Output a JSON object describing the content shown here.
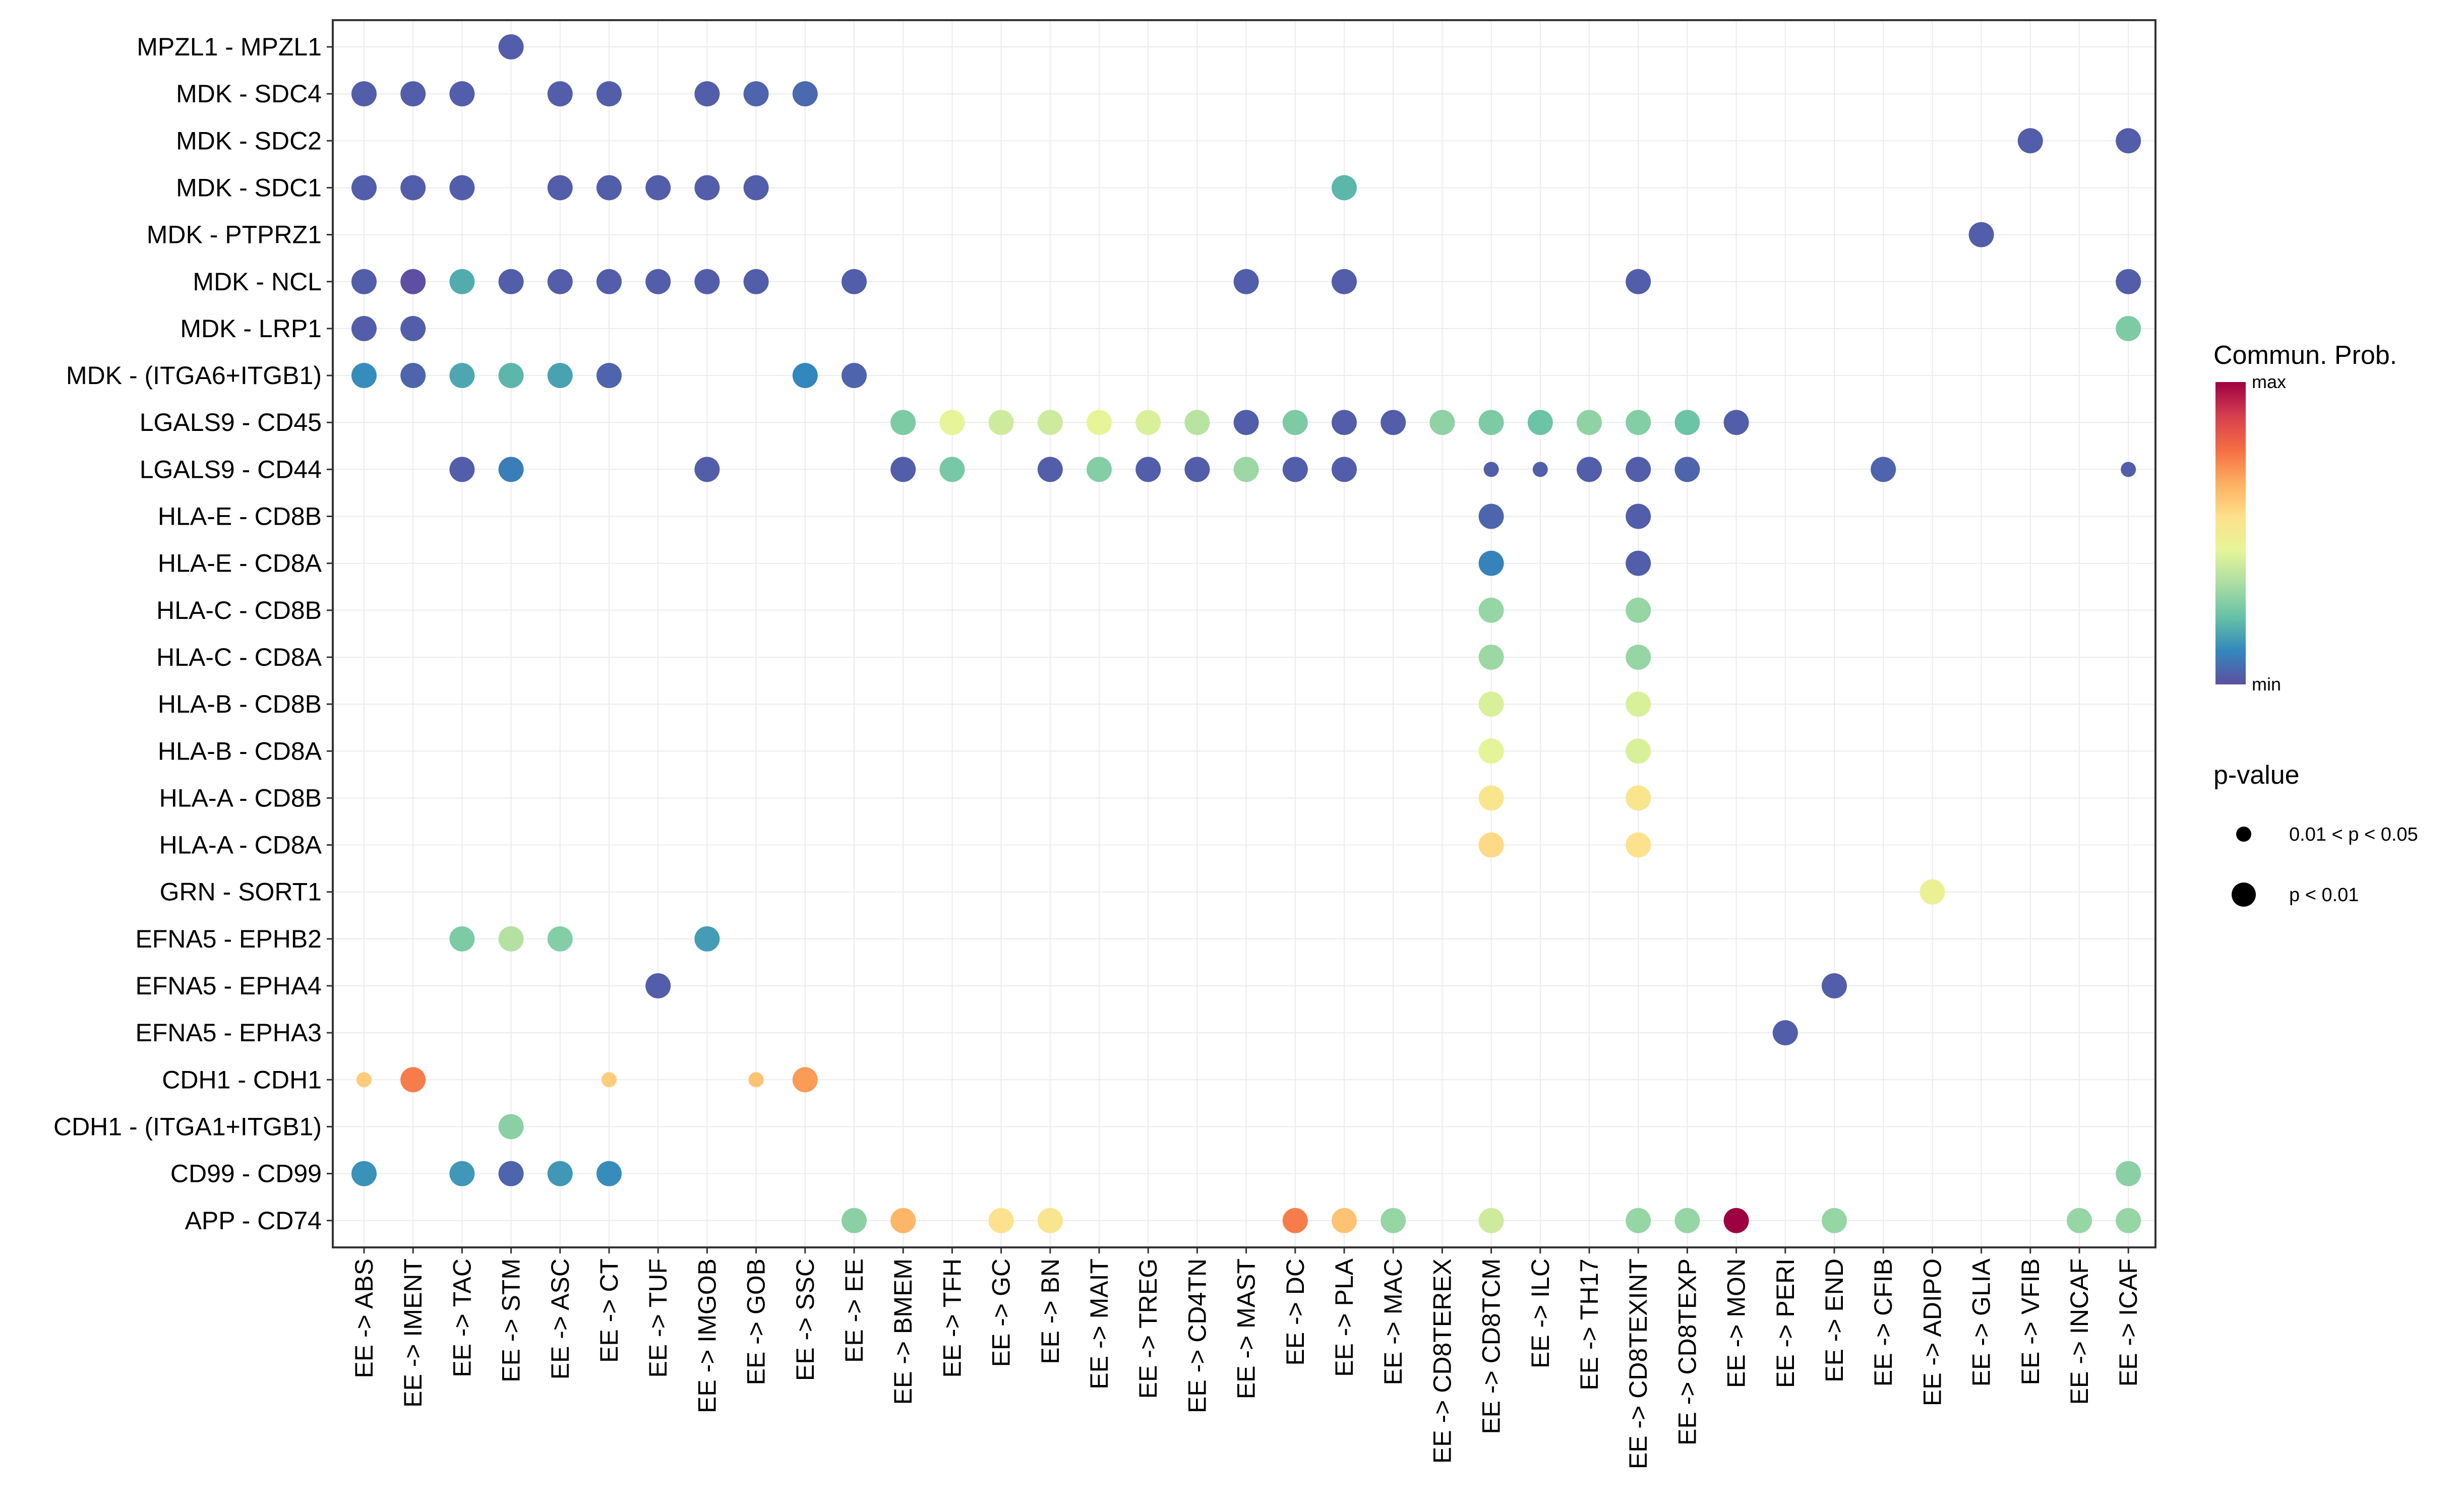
{
  "chart_data": {
    "type": "scatter",
    "title": "",
    "xlabel": "",
    "ylabel": "",
    "x_categories": [
      "EE -> ABS",
      "EE -> IMENT",
      "EE -> TAC",
      "EE -> STM",
      "EE -> ASC",
      "EE -> CT",
      "EE -> TUF",
      "EE -> IMGOB",
      "EE -> GOB",
      "EE -> SSC",
      "EE -> EE",
      "EE -> BMEM",
      "EE -> TFH",
      "EE -> GC",
      "EE -> BN",
      "EE -> MAIT",
      "EE -> TREG",
      "EE -> CD4TN",
      "EE -> MAST",
      "EE -> DC",
      "EE -> PLA",
      "EE -> MAC",
      "EE -> CD8TEREX",
      "EE -> CD8TCM",
      "EE -> ILC",
      "EE -> TH17",
      "EE -> CD8TEXINT",
      "EE -> CD8TEXP",
      "EE -> MON",
      "EE -> PERI",
      "EE -> END",
      "EE -> CFIB",
      "EE -> ADIPO",
      "EE -> GLIA",
      "EE -> VFIB",
      "EE -> INCAF",
      "EE -> ICAF"
    ],
    "y_categories": [
      "MPZL1 - MPZL1",
      "MDK - SDC4",
      "MDK - SDC2",
      "MDK - SDC1",
      "MDK - PTPRZ1",
      "MDK - NCL",
      "MDK - LRP1",
      "MDK - (ITGA6+ITGB1)",
      "LGALS9 - CD45",
      "LGALS9 - CD44",
      "HLA-E - CD8B",
      "HLA-E - CD8A",
      "HLA-C - CD8B",
      "HLA-C - CD8A",
      "HLA-B - CD8B",
      "HLA-B - CD8A",
      "HLA-A - CD8B",
      "HLA-A - CD8A",
      "GRN - SORT1",
      "EFNA5 - EPHB2",
      "EFNA5 - EPHA4",
      "EFNA5 - EPHA3",
      "CDH1 - CDH1",
      "CDH1 - (ITGA1+ITGB1)",
      "CD99 - CD99",
      "APP - CD74"
    ],
    "color_scale": {
      "title": "Commun. Prob.",
      "max_label": "max",
      "min_label": "min",
      "colors": [
        "#5E4FA2",
        "#3288BD",
        "#66C2A5",
        "#ABDDA4",
        "#E6F598",
        "#FEE08B",
        "#FDAE61",
        "#F46D43",
        "#D53E4F",
        "#9E0142"
      ]
    },
    "size_legend": {
      "title": "p-value",
      "levels": [
        {
          "label": "0.01 < p < 0.05",
          "size": "small"
        },
        {
          "label": "p < 0.01",
          "size": "large"
        }
      ]
    },
    "points": [
      {
        "x": 3,
        "y": 0,
        "prob": 0.03,
        "p": "<0.01"
      },
      {
        "x": 0,
        "y": 1,
        "prob": 0.03,
        "p": "<0.01"
      },
      {
        "x": 1,
        "y": 1,
        "prob": 0.03,
        "p": "<0.01"
      },
      {
        "x": 2,
        "y": 1,
        "prob": 0.03,
        "p": "<0.01"
      },
      {
        "x": 4,
        "y": 1,
        "prob": 0.03,
        "p": "<0.01"
      },
      {
        "x": 5,
        "y": 1,
        "prob": 0.03,
        "p": "<0.01"
      },
      {
        "x": 7,
        "y": 1,
        "prob": 0.03,
        "p": "<0.01"
      },
      {
        "x": 8,
        "y": 1,
        "prob": 0.04,
        "p": "<0.01"
      },
      {
        "x": 9,
        "y": 1,
        "prob": 0.05,
        "p": "<0.01"
      },
      {
        "x": 34,
        "y": 2,
        "prob": 0.03,
        "p": "<0.01"
      },
      {
        "x": 36,
        "y": 2,
        "prob": 0.03,
        "p": "<0.01"
      },
      {
        "x": 0,
        "y": 3,
        "prob": 0.03,
        "p": "<0.01"
      },
      {
        "x": 1,
        "y": 3,
        "prob": 0.03,
        "p": "<0.01"
      },
      {
        "x": 2,
        "y": 3,
        "prob": 0.03,
        "p": "<0.01"
      },
      {
        "x": 4,
        "y": 3,
        "prob": 0.03,
        "p": "<0.01"
      },
      {
        "x": 5,
        "y": 3,
        "prob": 0.03,
        "p": "<0.01"
      },
      {
        "x": 6,
        "y": 3,
        "prob": 0.03,
        "p": "<0.01"
      },
      {
        "x": 7,
        "y": 3,
        "prob": 0.03,
        "p": "<0.01"
      },
      {
        "x": 8,
        "y": 3,
        "prob": 0.03,
        "p": "<0.01"
      },
      {
        "x": 20,
        "y": 3,
        "prob": 0.2,
        "p": "<0.01"
      },
      {
        "x": 33,
        "y": 4,
        "prob": 0.03,
        "p": "<0.01"
      },
      {
        "x": 0,
        "y": 5,
        "prob": 0.03,
        "p": "<0.01"
      },
      {
        "x": 1,
        "y": 5,
        "prob": 0.0,
        "p": "<0.01"
      },
      {
        "x": 2,
        "y": 5,
        "prob": 0.18,
        "p": "<0.01"
      },
      {
        "x": 3,
        "y": 5,
        "prob": 0.03,
        "p": "<0.01"
      },
      {
        "x": 4,
        "y": 5,
        "prob": 0.03,
        "p": "<0.01"
      },
      {
        "x": 5,
        "y": 5,
        "prob": 0.03,
        "p": "<0.01"
      },
      {
        "x": 6,
        "y": 5,
        "prob": 0.03,
        "p": "<0.01"
      },
      {
        "x": 7,
        "y": 5,
        "prob": 0.03,
        "p": "<0.01"
      },
      {
        "x": 8,
        "y": 5,
        "prob": 0.03,
        "p": "<0.01"
      },
      {
        "x": 10,
        "y": 5,
        "prob": 0.03,
        "p": "<0.01"
      },
      {
        "x": 18,
        "y": 5,
        "prob": 0.03,
        "p": "<0.01"
      },
      {
        "x": 20,
        "y": 5,
        "prob": 0.03,
        "p": "<0.01"
      },
      {
        "x": 26,
        "y": 5,
        "prob": 0.03,
        "p": "<0.01"
      },
      {
        "x": 36,
        "y": 5,
        "prob": 0.03,
        "p": "<0.01"
      },
      {
        "x": 0,
        "y": 6,
        "prob": 0.03,
        "p": "<0.01"
      },
      {
        "x": 1,
        "y": 6,
        "prob": 0.03,
        "p": "<0.01"
      },
      {
        "x": 36,
        "y": 6,
        "prob": 0.26,
        "p": "<0.01"
      },
      {
        "x": 0,
        "y": 7,
        "prob": 0.12,
        "p": "<0.01"
      },
      {
        "x": 1,
        "y": 7,
        "prob": 0.04,
        "p": "<0.01"
      },
      {
        "x": 2,
        "y": 7,
        "prob": 0.17,
        "p": "<0.01"
      },
      {
        "x": 3,
        "y": 7,
        "prob": 0.2,
        "p": "<0.01"
      },
      {
        "x": 4,
        "y": 7,
        "prob": 0.16,
        "p": "<0.01"
      },
      {
        "x": 5,
        "y": 7,
        "prob": 0.04,
        "p": "<0.01"
      },
      {
        "x": 9,
        "y": 7,
        "prob": 0.11,
        "p": "<0.01"
      },
      {
        "x": 10,
        "y": 7,
        "prob": 0.04,
        "p": "<0.01"
      },
      {
        "x": 11,
        "y": 8,
        "prob": 0.26,
        "p": "<0.01"
      },
      {
        "x": 12,
        "y": 8,
        "prob": 0.45,
        "p": "<0.01"
      },
      {
        "x": 13,
        "y": 8,
        "prob": 0.4,
        "p": "<0.01"
      },
      {
        "x": 14,
        "y": 8,
        "prob": 0.4,
        "p": "<0.01"
      },
      {
        "x": 15,
        "y": 8,
        "prob": 0.45,
        "p": "<0.01"
      },
      {
        "x": 16,
        "y": 8,
        "prob": 0.42,
        "p": "<0.01"
      },
      {
        "x": 17,
        "y": 8,
        "prob": 0.36,
        "p": "<0.01"
      },
      {
        "x": 18,
        "y": 8,
        "prob": 0.03,
        "p": "<0.01"
      },
      {
        "x": 19,
        "y": 8,
        "prob": 0.26,
        "p": "<0.01"
      },
      {
        "x": 20,
        "y": 8,
        "prob": 0.03,
        "p": "<0.01"
      },
      {
        "x": 21,
        "y": 8,
        "prob": 0.03,
        "p": "<0.01"
      },
      {
        "x": 22,
        "y": 8,
        "prob": 0.29,
        "p": "<0.01"
      },
      {
        "x": 23,
        "y": 8,
        "prob": 0.26,
        "p": "<0.01"
      },
      {
        "x": 24,
        "y": 8,
        "prob": 0.23,
        "p": "<0.01"
      },
      {
        "x": 25,
        "y": 8,
        "prob": 0.29,
        "p": "<0.01"
      },
      {
        "x": 26,
        "y": 8,
        "prob": 0.27,
        "p": "<0.01"
      },
      {
        "x": 27,
        "y": 8,
        "prob": 0.23,
        "p": "<0.01"
      },
      {
        "x": 28,
        "y": 8,
        "prob": 0.03,
        "p": "<0.01"
      },
      {
        "x": 2,
        "y": 9,
        "prob": 0.03,
        "p": "<0.01"
      },
      {
        "x": 3,
        "y": 9,
        "prob": 0.09,
        "p": "<0.01"
      },
      {
        "x": 7,
        "y": 9,
        "prob": 0.03,
        "p": "<0.01"
      },
      {
        "x": 11,
        "y": 9,
        "prob": 0.03,
        "p": "<0.01"
      },
      {
        "x": 12,
        "y": 9,
        "prob": 0.25,
        "p": "<0.01"
      },
      {
        "x": 14,
        "y": 9,
        "prob": 0.03,
        "p": "<0.01"
      },
      {
        "x": 15,
        "y": 9,
        "prob": 0.27,
        "p": "<0.01"
      },
      {
        "x": 16,
        "y": 9,
        "prob": 0.03,
        "p": "<0.01"
      },
      {
        "x": 17,
        "y": 9,
        "prob": 0.03,
        "p": "<0.01"
      },
      {
        "x": 18,
        "y": 9,
        "prob": 0.31,
        "p": "<0.01"
      },
      {
        "x": 19,
        "y": 9,
        "prob": 0.03,
        "p": "<0.01"
      },
      {
        "x": 20,
        "y": 9,
        "prob": 0.03,
        "p": "<0.01"
      },
      {
        "x": 23,
        "y": 9,
        "prob": 0.03,
        "p": "0.01-0.05"
      },
      {
        "x": 24,
        "y": 9,
        "prob": 0.03,
        "p": "0.01-0.05"
      },
      {
        "x": 25,
        "y": 9,
        "prob": 0.03,
        "p": "<0.01"
      },
      {
        "x": 26,
        "y": 9,
        "prob": 0.03,
        "p": "<0.01"
      },
      {
        "x": 27,
        "y": 9,
        "prob": 0.04,
        "p": "<0.01"
      },
      {
        "x": 31,
        "y": 9,
        "prob": 0.04,
        "p": "<0.01"
      },
      {
        "x": 36,
        "y": 9,
        "prob": 0.03,
        "p": "0.01-0.05"
      },
      {
        "x": 23,
        "y": 10,
        "prob": 0.04,
        "p": "<0.01"
      },
      {
        "x": 26,
        "y": 10,
        "prob": 0.03,
        "p": "<0.01"
      },
      {
        "x": 23,
        "y": 11,
        "prob": 0.1,
        "p": "<0.01"
      },
      {
        "x": 26,
        "y": 11,
        "prob": 0.03,
        "p": "<0.01"
      },
      {
        "x": 23,
        "y": 12,
        "prob": 0.3,
        "p": "<0.01"
      },
      {
        "x": 26,
        "y": 12,
        "prob": 0.3,
        "p": "<0.01"
      },
      {
        "x": 23,
        "y": 13,
        "prob": 0.31,
        "p": "<0.01"
      },
      {
        "x": 26,
        "y": 13,
        "prob": 0.3,
        "p": "<0.01"
      },
      {
        "x": 23,
        "y": 14,
        "prob": 0.42,
        "p": "<0.01"
      },
      {
        "x": 26,
        "y": 14,
        "prob": 0.42,
        "p": "<0.01"
      },
      {
        "x": 23,
        "y": 15,
        "prob": 0.44,
        "p": "<0.01"
      },
      {
        "x": 26,
        "y": 15,
        "prob": 0.42,
        "p": "<0.01"
      },
      {
        "x": 23,
        "y": 16,
        "prob": 0.53,
        "p": "<0.01"
      },
      {
        "x": 26,
        "y": 16,
        "prob": 0.53,
        "p": "<0.01"
      },
      {
        "x": 23,
        "y": 17,
        "prob": 0.57,
        "p": "<0.01"
      },
      {
        "x": 26,
        "y": 17,
        "prob": 0.55,
        "p": "<0.01"
      },
      {
        "x": 32,
        "y": 18,
        "prob": 0.47,
        "p": "<0.01"
      },
      {
        "x": 2,
        "y": 19,
        "prob": 0.26,
        "p": "<0.01"
      },
      {
        "x": 3,
        "y": 19,
        "prob": 0.35,
        "p": "<0.01"
      },
      {
        "x": 4,
        "y": 19,
        "prob": 0.27,
        "p": "<0.01"
      },
      {
        "x": 7,
        "y": 19,
        "prob": 0.15,
        "p": "<0.01"
      },
      {
        "x": 6,
        "y": 20,
        "prob": 0.03,
        "p": "<0.01"
      },
      {
        "x": 30,
        "y": 20,
        "prob": 0.03,
        "p": "<0.01"
      },
      {
        "x": 29,
        "y": 21,
        "prob": 0.03,
        "p": "<0.01"
      },
      {
        "x": 0,
        "y": 22,
        "prob": 0.6,
        "p": "0.01-0.05"
      },
      {
        "x": 1,
        "y": 22,
        "prob": 0.75,
        "p": "<0.01"
      },
      {
        "x": 5,
        "y": 22,
        "prob": 0.6,
        "p": "0.01-0.05"
      },
      {
        "x": 8,
        "y": 22,
        "prob": 0.62,
        "p": "0.01-0.05"
      },
      {
        "x": 9,
        "y": 22,
        "prob": 0.7,
        "p": "<0.01"
      },
      {
        "x": 3,
        "y": 23,
        "prob": 0.28,
        "p": "<0.01"
      },
      {
        "x": 0,
        "y": 24,
        "prob": 0.13,
        "p": "<0.01"
      },
      {
        "x": 2,
        "y": 24,
        "prob": 0.14,
        "p": "<0.01"
      },
      {
        "x": 3,
        "y": 24,
        "prob": 0.04,
        "p": "<0.01"
      },
      {
        "x": 4,
        "y": 24,
        "prob": 0.14,
        "p": "<0.01"
      },
      {
        "x": 5,
        "y": 24,
        "prob": 0.12,
        "p": "<0.01"
      },
      {
        "x": 36,
        "y": 24,
        "prob": 0.28,
        "p": "<0.01"
      },
      {
        "x": 10,
        "y": 25,
        "prob": 0.28,
        "p": "<0.01"
      },
      {
        "x": 11,
        "y": 25,
        "prob": 0.65,
        "p": "<0.01"
      },
      {
        "x": 13,
        "y": 25,
        "prob": 0.55,
        "p": "<0.01"
      },
      {
        "x": 14,
        "y": 25,
        "prob": 0.53,
        "p": "<0.01"
      },
      {
        "x": 19,
        "y": 25,
        "prob": 0.75,
        "p": "<0.01"
      },
      {
        "x": 20,
        "y": 25,
        "prob": 0.62,
        "p": "<0.01"
      },
      {
        "x": 21,
        "y": 25,
        "prob": 0.3,
        "p": "<0.01"
      },
      {
        "x": 23,
        "y": 25,
        "prob": 0.4,
        "p": "<0.01"
      },
      {
        "x": 26,
        "y": 25,
        "prob": 0.3,
        "p": "<0.01"
      },
      {
        "x": 27,
        "y": 25,
        "prob": 0.3,
        "p": "<0.01"
      },
      {
        "x": 28,
        "y": 25,
        "prob": 1.0,
        "p": "<0.01"
      },
      {
        "x": 30,
        "y": 25,
        "prob": 0.3,
        "p": "<0.01"
      },
      {
        "x": 35,
        "y": 25,
        "prob": 0.3,
        "p": "<0.01"
      },
      {
        "x": 36,
        "y": 25,
        "prob": 0.3,
        "p": "<0.01"
      }
    ]
  }
}
